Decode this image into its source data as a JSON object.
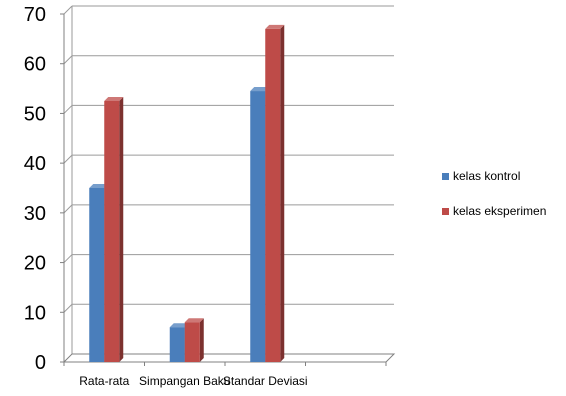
{
  "chart_data": {
    "type": "bar",
    "categories": [
      "Rata-rata",
      "Simpangan Baku",
      "Standar Deviasi"
    ],
    "series": [
      {
        "name": "kelas kontrol",
        "values": [
          35,
          7,
          54.5
        ],
        "color": "#4a7ebb"
      },
      {
        "name": "kelas eksperimen",
        "values": [
          52.5,
          8,
          67
        ],
        "color": "#be4b48"
      }
    ],
    "ylim": [
      0,
      70
    ],
    "yticks": [
      "0",
      "10",
      "20",
      "30",
      "40",
      "50",
      "60",
      "70"
    ],
    "grid": true,
    "legend_position": "right",
    "style": "3d-column"
  }
}
